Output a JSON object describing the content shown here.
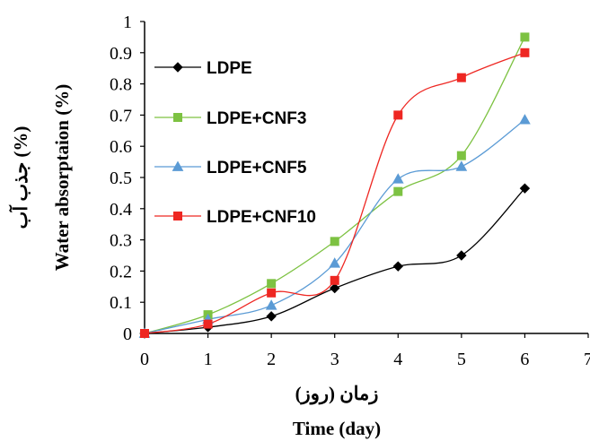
{
  "chart_data": {
    "type": "line",
    "xlabel": "Time (day)",
    "xlabel_alt": "زمان (روز)",
    "ylabel": "Water absorptaion (%)",
    "ylabel_alt": "جذب آب (%)",
    "x_ticks": [
      "0",
      "1",
      "2",
      "3",
      "4",
      "5",
      "6",
      "7"
    ],
    "y_ticks": [
      "0",
      "0.1",
      "0.2",
      "0.3",
      "0.4",
      "0.5",
      "0.6",
      "0.7",
      "0.8",
      "0.9",
      "1"
    ],
    "xlim": [
      0,
      7
    ],
    "ylim": [
      0,
      1
    ],
    "grid": false,
    "legend_position": "top-left",
    "x": [
      0,
      1,
      2,
      3,
      4,
      5,
      6
    ],
    "series": [
      {
        "name": "LDPE",
        "color": "#000000",
        "marker": "diamond",
        "values": [
          0,
          0.02,
          0.055,
          0.145,
          0.215,
          0.25,
          0.465
        ]
      },
      {
        "name": "LDPE+CNF3",
        "color": "#7dc242",
        "marker": "square",
        "values": [
          0,
          0.06,
          0.16,
          0.295,
          0.455,
          0.57,
          0.95
        ]
      },
      {
        "name": "LDPE+CNF5",
        "color": "#5b9bd5",
        "marker": "triangle",
        "values": [
          0,
          0.045,
          0.09,
          0.225,
          0.495,
          0.535,
          0.685
        ]
      },
      {
        "name": "LDPE+CNF10",
        "color": "#ee2722",
        "marker": "square",
        "values": [
          0,
          0.03,
          0.13,
          0.17,
          0.7,
          0.82,
          0.9
        ]
      }
    ]
  }
}
